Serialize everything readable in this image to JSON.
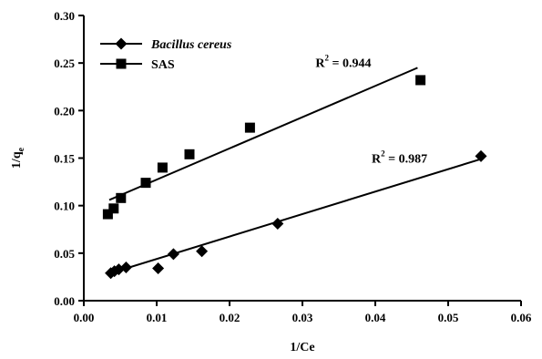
{
  "chart_data": {
    "type": "scatter",
    "title": "",
    "xlabel": "1/Ce",
    "ylabel_main": "1/q",
    "ylabel_sub": "e",
    "xlim": [
      0,
      0.06
    ],
    "ylim": [
      0,
      0.3
    ],
    "x_ticks": [
      "0.00",
      "0.01",
      "0.02",
      "0.03",
      "0.04",
      "0.05",
      "0.06"
    ],
    "y_ticks": [
      "0.00",
      "0.05",
      "0.10",
      "0.15",
      "0.20",
      "0.25",
      "0.30"
    ],
    "grid": false,
    "legend_position": "top-left",
    "series": [
      {
        "name": "Bacillus cereus",
        "marker": "diamond",
        "color": "#000000",
        "x": [
          0.0037,
          0.0042,
          0.0048,
          0.0058,
          0.0102,
          0.0123,
          0.0162,
          0.0266,
          0.0545
        ],
        "y": [
          0.029,
          0.031,
          0.033,
          0.035,
          0.034,
          0.049,
          0.052,
          0.081,
          0.152
        ],
        "fit": {
          "x": [
            0.0037,
            0.0545
          ],
          "y": [
            0.029,
            0.149
          ]
        },
        "r2_label": "R",
        "r2_sup": "2",
        "r2_value": " = 0.987",
        "r2_at": {
          "x": 0.0395,
          "y": 0.145
        }
      },
      {
        "name": "SAS",
        "marker": "square",
        "color": "#000000",
        "x": [
          0.0033,
          0.0041,
          0.0051,
          0.0085,
          0.0108,
          0.0145,
          0.0228,
          0.0462
        ],
        "y": [
          0.091,
          0.097,
          0.108,
          0.124,
          0.14,
          0.154,
          0.182,
          0.232
        ],
        "fit": {
          "x": [
            0.0035,
            0.0458
          ],
          "y": [
            0.106,
            0.245
          ]
        },
        "r2_label": "R",
        "r2_sup": "2",
        "r2_value": " = 0.944",
        "r2_at": {
          "x": 0.0318,
          "y": 0.246
        }
      }
    ]
  }
}
